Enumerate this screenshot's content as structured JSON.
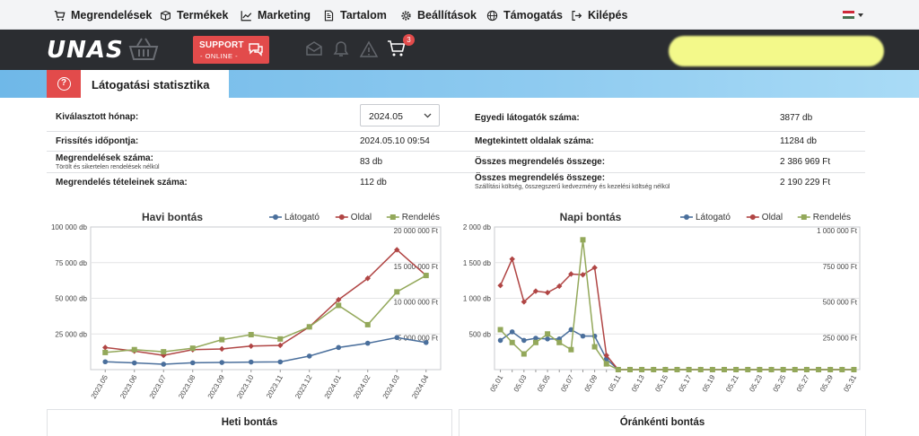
{
  "nav": {
    "items": [
      {
        "label": "Megrendelések",
        "icon": "cart-icon"
      },
      {
        "label": "Termékek",
        "icon": "box-icon"
      },
      {
        "label": "Marketing",
        "icon": "chart-line-icon"
      },
      {
        "label": "Tartalom",
        "icon": "document-icon"
      },
      {
        "label": "Beállítások",
        "icon": "gear-icon"
      },
      {
        "label": "Támogatás",
        "icon": "globe-icon"
      },
      {
        "label": "Kilépés",
        "icon": "logout-icon"
      }
    ],
    "language_flag": "hungarian-flag-icon"
  },
  "header": {
    "logo": "UNAS",
    "support_label": "SUPPORT",
    "support_status": "- ONLINE -",
    "cart_count": "3",
    "accent_color": "#e24b4b"
  },
  "page": {
    "title": "Látogatási statisztika"
  },
  "stats": {
    "month_label": "Kiválasztott hónap:",
    "month_value": "2024.05",
    "refresh_label": "Frissítés időpontja:",
    "refresh_value": "2024.05.10 09:54",
    "orders_label": "Megrendelések száma:",
    "orders_sub": "Törölt és sikertelen rendelések nélkül",
    "orders_value": "83 db",
    "items_label": "Megrendelés tételeinek száma:",
    "items_value": "112 db",
    "unique_label": "Egyedi látogatók száma:",
    "unique_value": "3877 db",
    "pages_label": "Megtekintett oldalak száma:",
    "pages_value": "11284 db",
    "total1_label": "Összes megrendelés összege:",
    "total1_value": "2 386 969 Ft",
    "total2_label": "Összes megrendelés összege:",
    "total2_sub": "Szállítási költség, összegszerű kedvezmény és kezelési költség nélkül",
    "total2_value": "2 190 229 Ft"
  },
  "chart_data": [
    {
      "type": "line",
      "title": "Havi bontás",
      "legend_position": "top",
      "x": [
        "2023.05",
        "2023.06",
        "2023.07",
        "2023.08",
        "2023.09",
        "2023.10",
        "2023.11",
        "2023.12",
        "2024.01",
        "2024.02",
        "2024.03",
        "2024.04"
      ],
      "ylim": [
        0,
        100000
      ],
      "y_ticks": [
        "25 000 db",
        "50 000 db",
        "75 000 db",
        "100 000 db"
      ],
      "y2lim": [
        0,
        20000000
      ],
      "y2_ticks": [
        "5 000 000 Ft",
        "10 000 000 Ft",
        "15 000 000 Ft",
        "20 000 000 Ft"
      ],
      "series": [
        {
          "name": "Látogató",
          "color": "#4a6f9c",
          "axis": "left",
          "values": [
            5500,
            4700,
            3800,
            4800,
            5000,
            5300,
            5400,
            9500,
            15500,
            18500,
            22500,
            19000
          ]
        },
        {
          "name": "Oldal",
          "color": "#b04544",
          "axis": "left",
          "values": [
            15500,
            13000,
            10000,
            14000,
            14500,
            16500,
            17000,
            30000,
            49000,
            64000,
            84000,
            66000
          ]
        },
        {
          "name": "Rendelés",
          "color": "#93a85a",
          "axis": "right",
          "values": [
            2400000,
            2800000,
            2500000,
            3000000,
            4200000,
            4900000,
            4300000,
            6000000,
            9000000,
            6300000,
            10900000,
            13200000
          ]
        }
      ]
    },
    {
      "type": "line",
      "title": "Napi bontás",
      "legend_position": "top",
      "x": [
        "05.01",
        "05.02",
        "05.03",
        "05.04",
        "05.05",
        "05.06",
        "05.07",
        "05.08",
        "05.09",
        "05.10",
        "05.11",
        "05.12",
        "05.13",
        "05.14",
        "05.15",
        "05.16",
        "05.17",
        "05.18",
        "05.19",
        "05.20",
        "05.21",
        "05.22",
        "05.23",
        "05.24",
        "05.25",
        "05.26",
        "05.27",
        "05.28",
        "05.29",
        "05.30",
        "05.31"
      ],
      "x_labels": [
        "05.01",
        "05.03",
        "05.05",
        "05.07",
        "05.09",
        "05.11",
        "05.13",
        "05.15",
        "05.17",
        "05.19",
        "05.21",
        "05.23",
        "05.25",
        "05.27",
        "05.29",
        "05.31"
      ],
      "ylim": [
        0,
        2000
      ],
      "y_ticks": [
        "500 db",
        "1 000 db",
        "1 500 db",
        "2 000 db"
      ],
      "y2lim": [
        0,
        1000000
      ],
      "y2_ticks": [
        "250 000 Ft",
        "500 000 Ft",
        "750 000 Ft",
        "1 000 000 Ft"
      ],
      "series": [
        {
          "name": "Látogató",
          "color": "#4a6f9c",
          "axis": "left",
          "values": [
            410,
            530,
            410,
            440,
            430,
            430,
            560,
            470,
            470,
            150,
            0,
            0,
            0,
            0,
            0,
            0,
            0,
            0,
            0,
            0,
            0,
            0,
            0,
            0,
            0,
            0,
            0,
            0,
            0,
            0,
            0
          ]
        },
        {
          "name": "Oldal",
          "color": "#b04544",
          "axis": "left",
          "values": [
            1180,
            1550,
            950,
            1100,
            1080,
            1170,
            1340,
            1330,
            1430,
            200,
            0,
            0,
            0,
            0,
            0,
            0,
            0,
            0,
            0,
            0,
            0,
            0,
            0,
            0,
            0,
            0,
            0,
            0,
            0,
            0,
            0
          ]
        },
        {
          "name": "Rendelés",
          "color": "#93a85a",
          "axis": "right",
          "values": [
            280000,
            190000,
            110000,
            190000,
            250000,
            190000,
            140000,
            910000,
            160000,
            40000,
            0,
            0,
            0,
            0,
            0,
            0,
            0,
            0,
            0,
            0,
            0,
            0,
            0,
            0,
            0,
            0,
            0,
            0,
            0,
            0,
            0
          ]
        }
      ]
    }
  ],
  "panels": {
    "weekly_title": "Heti bontás",
    "hourly_title": "Óránkénti bontás"
  }
}
